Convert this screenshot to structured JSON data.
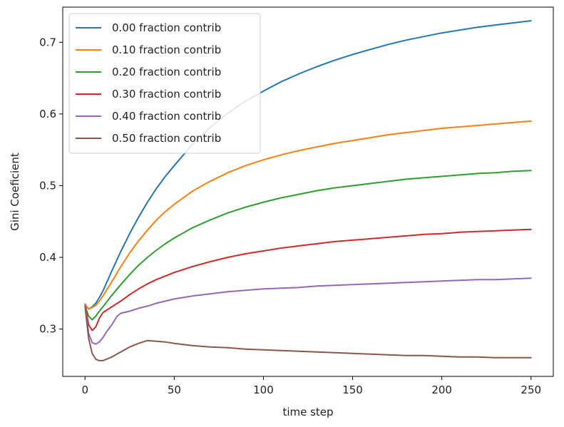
{
  "chart_data": {
    "type": "line",
    "title": "",
    "xlabel": "time step",
    "ylabel": "Gini Coeficient",
    "xlim": [
      -12.5,
      262.5
    ],
    "ylim": [
      0.234,
      0.749
    ],
    "xticks": [
      0,
      50,
      100,
      150,
      200,
      250
    ],
    "xtick_labels": [
      "0",
      "50",
      "100",
      "150",
      "200",
      "250"
    ],
    "yticks": [
      0.3,
      0.4,
      0.5,
      0.6,
      0.7
    ],
    "ytick_labels": [
      "0.3",
      "0.4",
      "0.5",
      "0.6",
      "0.7"
    ],
    "grid": false,
    "legend_position": "upper-left",
    "series": [
      {
        "name": "0.00 fraction contrib",
        "color": "#1f77b4",
        "x": [
          0,
          2,
          4,
          6,
          8,
          10,
          15,
          20,
          25,
          30,
          35,
          40,
          45,
          50,
          60,
          70,
          80,
          90,
          100,
          110,
          120,
          130,
          140,
          150,
          160,
          170,
          180,
          190,
          200,
          210,
          220,
          230,
          240,
          250
        ],
        "y": [
          0.333,
          0.328,
          0.331,
          0.336,
          0.344,
          0.353,
          0.381,
          0.408,
          0.433,
          0.456,
          0.477,
          0.496,
          0.513,
          0.528,
          0.557,
          0.581,
          0.601,
          0.618,
          0.632,
          0.645,
          0.656,
          0.666,
          0.675,
          0.683,
          0.69,
          0.697,
          0.703,
          0.708,
          0.713,
          0.717,
          0.721,
          0.724,
          0.727,
          0.73
        ]
      },
      {
        "name": "0.10 fraction contrib",
        "color": "#ff7f0e",
        "x": [
          0,
          2,
          4,
          6,
          8,
          10,
          15,
          20,
          25,
          30,
          35,
          40,
          45,
          50,
          60,
          70,
          80,
          90,
          100,
          110,
          120,
          130,
          140,
          150,
          160,
          170,
          180,
          190,
          200,
          210,
          220,
          230,
          240,
          250
        ],
        "y": [
          0.335,
          0.328,
          0.33,
          0.333,
          0.339,
          0.346,
          0.366,
          0.387,
          0.406,
          0.423,
          0.438,
          0.452,
          0.464,
          0.474,
          0.492,
          0.506,
          0.518,
          0.528,
          0.536,
          0.543,
          0.549,
          0.554,
          0.559,
          0.563,
          0.567,
          0.571,
          0.574,
          0.577,
          0.58,
          0.582,
          0.584,
          0.586,
          0.588,
          0.59
        ]
      },
      {
        "name": "0.20 fraction contrib",
        "color": "#2ca02c",
        "x": [
          0,
          2,
          4,
          6,
          8,
          10,
          15,
          20,
          25,
          30,
          35,
          40,
          45,
          50,
          60,
          70,
          80,
          90,
          100,
          110,
          120,
          130,
          140,
          150,
          160,
          170,
          180,
          190,
          200,
          210,
          220,
          230,
          240,
          250
        ],
        "y": [
          0.332,
          0.318,
          0.313,
          0.318,
          0.325,
          0.331,
          0.347,
          0.362,
          0.376,
          0.389,
          0.4,
          0.41,
          0.419,
          0.427,
          0.441,
          0.452,
          0.462,
          0.47,
          0.477,
          0.483,
          0.488,
          0.493,
          0.497,
          0.5,
          0.503,
          0.506,
          0.509,
          0.511,
          0.513,
          0.515,
          0.517,
          0.518,
          0.52,
          0.521
        ]
      },
      {
        "name": "0.30 fraction contrib",
        "color": "#d62728",
        "x": [
          0,
          2,
          4,
          6,
          8,
          10,
          15,
          20,
          25,
          30,
          35,
          40,
          45,
          50,
          60,
          70,
          80,
          90,
          100,
          110,
          120,
          130,
          140,
          150,
          160,
          170,
          180,
          190,
          200,
          210,
          220,
          230,
          240,
          250
        ],
        "y": [
          0.333,
          0.306,
          0.298,
          0.303,
          0.315,
          0.323,
          0.331,
          0.339,
          0.348,
          0.356,
          0.363,
          0.369,
          0.374,
          0.379,
          0.387,
          0.394,
          0.4,
          0.405,
          0.409,
          0.413,
          0.416,
          0.419,
          0.422,
          0.424,
          0.426,
          0.428,
          0.43,
          0.432,
          0.433,
          0.435,
          0.436,
          0.437,
          0.438,
          0.439
        ]
      },
      {
        "name": "0.40 fraction contrib",
        "color": "#9467bd",
        "x": [
          0,
          2,
          4,
          6,
          8,
          10,
          12,
          15,
          18,
          20,
          25,
          30,
          35,
          40,
          45,
          50,
          60,
          70,
          80,
          90,
          100,
          110,
          120,
          130,
          140,
          150,
          160,
          170,
          180,
          190,
          200,
          210,
          220,
          230,
          240,
          250
        ],
        "y": [
          0.334,
          0.294,
          0.281,
          0.279,
          0.282,
          0.288,
          0.296,
          0.306,
          0.318,
          0.322,
          0.325,
          0.329,
          0.332,
          0.336,
          0.339,
          0.342,
          0.346,
          0.349,
          0.352,
          0.354,
          0.356,
          0.357,
          0.358,
          0.36,
          0.361,
          0.362,
          0.363,
          0.364,
          0.365,
          0.366,
          0.367,
          0.368,
          0.369,
          0.369,
          0.37,
          0.371
        ]
      },
      {
        "name": "0.50 fraction contrib",
        "color": "#8c564b",
        "x": [
          0,
          2,
          4,
          6,
          8,
          10,
          15,
          20,
          25,
          30,
          35,
          40,
          45,
          50,
          60,
          70,
          80,
          90,
          100,
          110,
          120,
          130,
          140,
          150,
          160,
          170,
          180,
          190,
          200,
          210,
          220,
          230,
          240,
          250
        ],
        "y": [
          0.331,
          0.287,
          0.266,
          0.258,
          0.256,
          0.256,
          0.261,
          0.268,
          0.275,
          0.28,
          0.284,
          0.283,
          0.282,
          0.28,
          0.277,
          0.275,
          0.274,
          0.272,
          0.271,
          0.27,
          0.269,
          0.268,
          0.267,
          0.266,
          0.265,
          0.264,
          0.263,
          0.263,
          0.262,
          0.261,
          0.261,
          0.26,
          0.26,
          0.26
        ]
      }
    ]
  }
}
